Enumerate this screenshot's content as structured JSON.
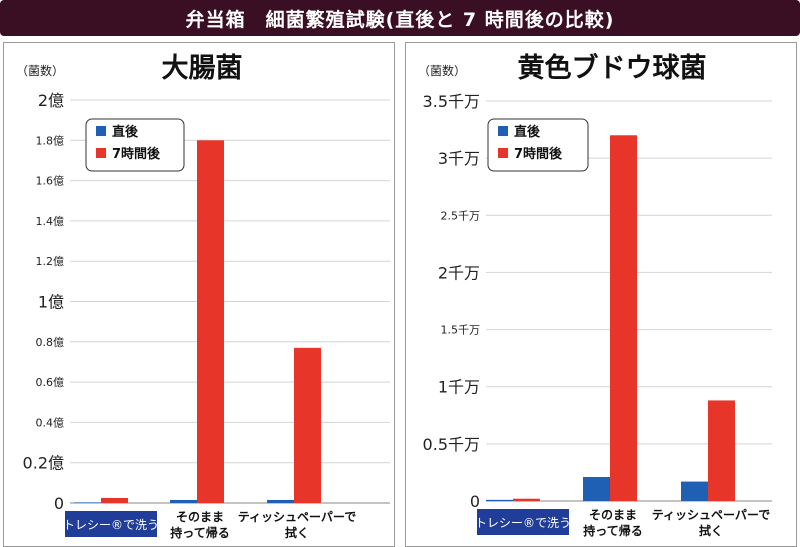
{
  "banner": {
    "title": "弁当箱　細菌繁殖試験(直後と 7 時間後の比較)"
  },
  "colors": {
    "direct": "#1f5fb4",
    "after7h": "#e8352a",
    "banner_bg": "#3a0f24",
    "category_highlight": "#1f3d99"
  },
  "chart_data": [
    {
      "type": "bar",
      "title": "大腸菌",
      "ylabel": "（菌数）",
      "categories": [
        "トレシー®で洗う",
        "そのまま持って帰る",
        "ティッシュペーパーで拭く"
      ],
      "highlight_category": 0,
      "category_lines": [
        [
          "トレシー®で洗う"
        ],
        [
          "そのまま",
          "持って帰る"
        ],
        [
          "ティッシュペーパーで",
          "拭く"
        ]
      ],
      "series": [
        {
          "name": "直後",
          "color": "#1f5fb4",
          "values": [
            0.003,
            0.015,
            0.015
          ]
        },
        {
          "name": "7時間後",
          "color": "#e8352a",
          "values": [
            0.025,
            1.8,
            0.77
          ]
        }
      ],
      "ylim": [
        0,
        2
      ],
      "yticks": [
        {
          "value": 0,
          "label": "0",
          "major": true
        },
        {
          "value": 0.2,
          "label": "0.2億",
          "major": true
        },
        {
          "value": 0.4,
          "label": "0.4億",
          "major": false
        },
        {
          "value": 0.6,
          "label": "0.6億",
          "major": false
        },
        {
          "value": 0.8,
          "label": "0.8億",
          "major": false
        },
        {
          "value": 1,
          "label": "1億",
          "major": true
        },
        {
          "value": 1.2,
          "label": "1.2億",
          "major": false
        },
        {
          "value": 1.4,
          "label": "1.4億",
          "major": false
        },
        {
          "value": 1.6,
          "label": "1.6億",
          "major": false
        },
        {
          "value": 1.8,
          "label": "1.8億",
          "major": false
        },
        {
          "value": 2,
          "label": "2億",
          "major": true
        }
      ],
      "legend": {
        "position": "top-left",
        "entries": [
          "直後",
          "7時間後"
        ]
      },
      "grid": true
    },
    {
      "type": "bar",
      "title": "黄色ブドウ球菌",
      "ylabel": "（菌数）",
      "categories": [
        "トレシー®で洗う",
        "そのまま持って帰る",
        "ティッシュペーパーで拭く"
      ],
      "highlight_category": 0,
      "category_lines": [
        [
          "トレシー®で洗う"
        ],
        [
          "そのまま",
          "持って帰る"
        ],
        [
          "ティッシュペーパーで",
          "拭く"
        ]
      ],
      "series": [
        {
          "name": "直後",
          "color": "#1f5fb4",
          "values": [
            0.01,
            0.21,
            0.17
          ]
        },
        {
          "name": "7時間後",
          "color": "#e8352a",
          "values": [
            0.02,
            3.2,
            0.88
          ]
        }
      ],
      "ylim": [
        0,
        3.5
      ],
      "yticks": [
        {
          "value": 0,
          "label": "0",
          "major": true
        },
        {
          "value": 0.5,
          "label": "0.5千万",
          "major": true
        },
        {
          "value": 1,
          "label": "1千万",
          "major": true
        },
        {
          "value": 1.5,
          "label": "1.5千万",
          "major": false
        },
        {
          "value": 2,
          "label": "2千万",
          "major": true
        },
        {
          "value": 2.5,
          "label": "2.5千万",
          "major": false
        },
        {
          "value": 3,
          "label": "3千万",
          "major": true
        },
        {
          "value": 3.5,
          "label": "3.5千万",
          "major": true
        }
      ],
      "legend": {
        "position": "top-left",
        "entries": [
          "直後",
          "7時間後"
        ]
      },
      "grid": true
    }
  ]
}
